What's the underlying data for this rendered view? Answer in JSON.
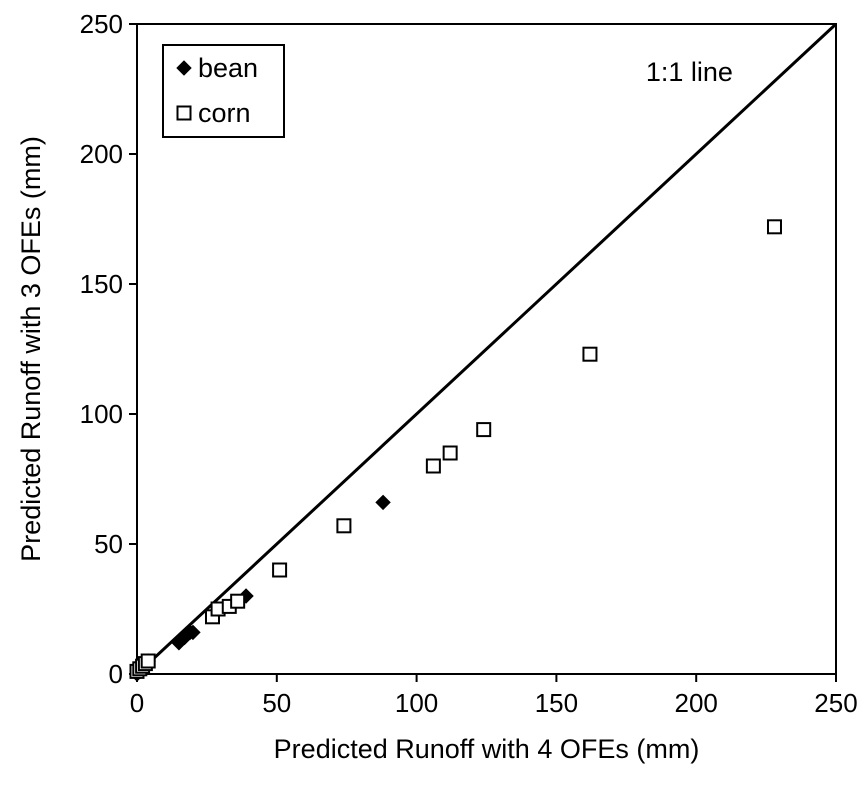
{
  "chart_data": {
    "type": "scatter",
    "title": "",
    "xlabel": "Predicted Runoff with 4 OFEs (mm)",
    "ylabel": "Predicted Runoff with 3 OFEs (mm)",
    "xlim": [
      0,
      250
    ],
    "ylim": [
      0,
      250
    ],
    "xticks": [
      0,
      50,
      100,
      150,
      200,
      250
    ],
    "yticks": [
      0,
      50,
      100,
      150,
      200,
      250
    ],
    "tick_labels_x": [
      "0",
      "50",
      "100",
      "150",
      "200",
      "250"
    ],
    "tick_labels_y": [
      "0",
      "50",
      "100",
      "150",
      "200",
      "250"
    ],
    "grid": false,
    "legend_position": "top-left",
    "series": [
      {
        "name": "bean",
        "marker": "filled-diamond",
        "color": "#000000",
        "points": [
          [
            0,
            0
          ],
          [
            1,
            1
          ],
          [
            1,
            2
          ],
          [
            2,
            3
          ],
          [
            3,
            4
          ],
          [
            4,
            5
          ],
          [
            15,
            12
          ],
          [
            17,
            14
          ],
          [
            19,
            16
          ],
          [
            20,
            16
          ],
          [
            39,
            30
          ],
          [
            88,
            66
          ]
        ]
      },
      {
        "name": "corn",
        "marker": "open-square",
        "color": "#000000",
        "points": [
          [
            0,
            1
          ],
          [
            1,
            2
          ],
          [
            2,
            3
          ],
          [
            3,
            4
          ],
          [
            4,
            5
          ],
          [
            27,
            22
          ],
          [
            29,
            25
          ],
          [
            33,
            26
          ],
          [
            36,
            28
          ],
          [
            51,
            40
          ],
          [
            74,
            57
          ],
          [
            106,
            80
          ],
          [
            112,
            85
          ],
          [
            124,
            94
          ],
          [
            162,
            123
          ],
          [
            228,
            172
          ]
        ]
      }
    ],
    "reference_line": {
      "label": "1:1 line",
      "from": [
        0,
        0
      ],
      "to": [
        250,
        250
      ]
    }
  }
}
